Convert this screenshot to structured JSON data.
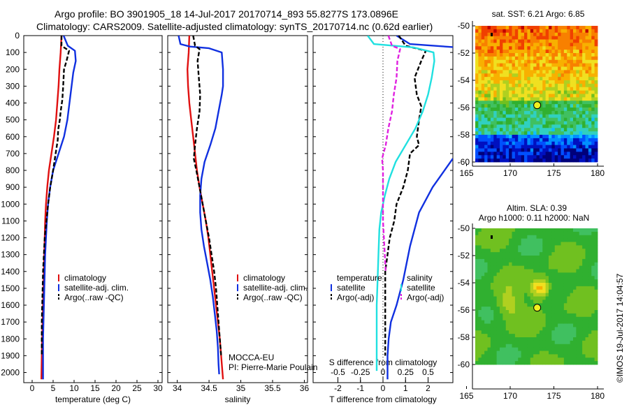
{
  "header": {
    "line1": "Argo profile: BO 3901905_18 14-Jul-2017 20170714_893 55.8277S 173.0896E",
    "line2": "Climatology: CARS2009. Satellite-adjusted climatology: synTS_20170714.nc (0.62d earlier)"
  },
  "colors": {
    "climatology": "#e01010",
    "satellite": "#1030e0",
    "argo": "#000000",
    "sal_satellite": "#20e0e0",
    "sal_argo": "#e020e0"
  },
  "panels": {
    "temperature": {
      "xlabel": "temperature (deg C)",
      "xticks": [
        "0",
        "5",
        "10",
        "15",
        "20",
        "25",
        "30"
      ]
    },
    "salinity": {
      "xlabel": "salinity",
      "xticks": [
        "34",
        "34.5",
        "35",
        "35.5",
        "36"
      ]
    },
    "difference": {
      "xlabel_bottom": "T difference from climatology",
      "xlabel_top": "S difference from climatology",
      "xticks_bottom": [
        "-2",
        "-1",
        "0",
        "1",
        "2"
      ],
      "xticks_top": [
        "-0.5",
        "-0.25",
        "0",
        "0.25",
        "0.5"
      ]
    }
  },
  "depth_ticks": [
    "0",
    "100",
    "200",
    "300",
    "400",
    "500",
    "600",
    "700",
    "800",
    "900",
    "1000",
    "1100",
    "1200",
    "1300",
    "1400",
    "1500",
    "1600",
    "1700",
    "1800",
    "1900",
    "2000"
  ],
  "legends": {
    "temperature": [
      "climatology",
      "satellite-adj. clim.",
      "Argo(..raw -QC)"
    ],
    "salinity": [
      "climatology",
      "satellite-adj. clim.",
      "Argo(..raw -QC)"
    ],
    "diff_temp_title": "temperature",
    "diff_sal_title": "salinity",
    "diff_items": [
      "satellite",
      "Argo(-adj)"
    ]
  },
  "pi": {
    "project": "MOCCA-EU",
    "name": "PI: Pierre-Marie Poulain"
  },
  "maps": {
    "sst": {
      "title": "sat. SST: 6.21 Argo: 6.85",
      "xticks": [
        "165",
        "170",
        "175",
        "180"
      ],
      "yticks": [
        "-50",
        "-52",
        "-54",
        "-56",
        "-58",
        "-60"
      ]
    },
    "sla": {
      "title1": "Altim. SLA: 0.39",
      "title2": "Argo h1000: 0.11 h2000: NaN",
      "xticks": [
        "165",
        "170",
        "175",
        "180"
      ],
      "yticks": [
        "-50",
        "-52",
        "-54",
        "-56",
        "-58",
        "-60"
      ]
    }
  },
  "stamp": "©IMOS 19-Jul-2017 14:04:57",
  "chart_data": [
    {
      "type": "line",
      "panel": "temperature",
      "xlabel": "temperature (deg C)",
      "ylabel": "",
      "xlim": [
        -2,
        31
      ],
      "ylim": [
        2060,
        0
      ],
      "y_axis": "depth",
      "series": [
        {
          "name": "climatology",
          "color_key": "climatology",
          "points": [
            [
              7,
              0
            ],
            [
              6.8,
              100
            ],
            [
              6.5,
              200
            ],
            [
              6.3,
              300
            ],
            [
              6,
              400
            ],
            [
              5.7,
              500
            ],
            [
              5.2,
              600
            ],
            [
              4.6,
              700
            ],
            [
              4,
              800
            ],
            [
              3.6,
              900
            ],
            [
              3.3,
              1000
            ],
            [
              3.1,
              1100
            ],
            [
              3,
              1200
            ],
            [
              2.9,
              1300
            ],
            [
              2.8,
              1400
            ],
            [
              2.7,
              1500
            ],
            [
              2.6,
              1600
            ],
            [
              2.5,
              1700
            ],
            [
              2.4,
              1800
            ],
            [
              2.3,
              1900
            ],
            [
              2.2,
              2040
            ]
          ]
        },
        {
          "name": "satellite-adj. clim.",
          "color_key": "satellite",
          "points": [
            [
              7.5,
              0
            ],
            [
              8.5,
              60
            ],
            [
              10.2,
              90
            ],
            [
              10.4,
              150
            ],
            [
              9.8,
              220
            ],
            [
              9.4,
              300
            ],
            [
              8.9,
              400
            ],
            [
              8.4,
              500
            ],
            [
              7.6,
              600
            ],
            [
              6.3,
              700
            ],
            [
              5,
              800
            ],
            [
              4.3,
              900
            ],
            [
              3.8,
              1000
            ],
            [
              3.5,
              1100
            ],
            [
              3.3,
              1200
            ],
            [
              3.1,
              1300
            ],
            [
              3,
              1400
            ],
            [
              2.9,
              1500
            ],
            [
              2.8,
              1600
            ],
            [
              2.7,
              1700
            ],
            [
              2.6,
              1800
            ],
            [
              2.6,
              1900
            ],
            [
              2.6,
              2040
            ]
          ]
        },
        {
          "name": "Argo(..raw -QC)",
          "color_key": "argo",
          "points": [
            [
              7,
              0
            ],
            [
              7,
              60
            ],
            [
              8.8,
              90
            ],
            [
              8.2,
              150
            ],
            [
              7.6,
              200
            ],
            [
              7.4,
              300
            ],
            [
              7.2,
              380
            ],
            [
              6.8,
              450
            ],
            [
              6.6,
              500
            ],
            [
              6.2,
              560
            ],
            [
              6.1,
              620
            ],
            [
              5.6,
              700
            ],
            [
              5,
              800
            ],
            [
              4.3,
              900
            ],
            [
              3.8,
              1000
            ],
            [
              3.4,
              1100
            ],
            [
              3,
              1200
            ],
            [
              2.8,
              1300
            ],
            [
              2.6,
              1400
            ],
            [
              2.5,
              1500
            ],
            [
              2.4,
              1600
            ],
            [
              2.3,
              1700
            ],
            [
              2.3,
              1800
            ],
            [
              2.3,
              1900
            ]
          ]
        }
      ]
    },
    {
      "type": "line",
      "panel": "salinity",
      "xlabel": "salinity",
      "ylabel": "",
      "xlim": [
        33.85,
        36.05
      ],
      "ylim": [
        2060,
        0
      ],
      "y_axis": "depth",
      "series": [
        {
          "name": "climatology",
          "color_key": "climatology",
          "points": [
            [
              34.19,
              0
            ],
            [
              34.18,
              100
            ],
            [
              34.16,
              200
            ],
            [
              34.17,
              300
            ],
            [
              34.19,
              400
            ],
            [
              34.22,
              500
            ],
            [
              34.25,
              600
            ],
            [
              34.28,
              700
            ],
            [
              34.31,
              800
            ],
            [
              34.35,
              900
            ],
            [
              34.4,
              1000
            ],
            [
              34.45,
              1100
            ],
            [
              34.49,
              1200
            ],
            [
              34.52,
              1300
            ],
            [
              34.55,
              1400
            ],
            [
              34.58,
              1500
            ],
            [
              34.61,
              1600
            ],
            [
              34.64,
              1700
            ],
            [
              34.67,
              1800
            ],
            [
              34.69,
              1900
            ],
            [
              34.72,
              2040
            ]
          ]
        },
        {
          "name": "satellite-adj. clim.",
          "color_key": "satellite",
          "points": [
            [
              34.02,
              0
            ],
            [
              34.05,
              50
            ],
            [
              34.2,
              65
            ],
            [
              34.5,
              75
            ],
            [
              34.7,
              100
            ],
            [
              34.72,
              200
            ],
            [
              34.72,
              300
            ],
            [
              34.7,
              350
            ],
            [
              34.65,
              450
            ],
            [
              34.6,
              550
            ],
            [
              34.52,
              650
            ],
            [
              34.43,
              750
            ],
            [
              34.38,
              850
            ],
            [
              34.36,
              950
            ],
            [
              34.36,
              1050
            ],
            [
              34.38,
              1150
            ],
            [
              34.42,
              1250
            ],
            [
              34.47,
              1350
            ],
            [
              34.52,
              1450
            ],
            [
              34.56,
              1550
            ],
            [
              34.59,
              1650
            ],
            [
              34.62,
              1750
            ],
            [
              34.64,
              1850
            ],
            [
              34.65,
              1950
            ],
            [
              34.66,
              2010
            ]
          ]
        },
        {
          "name": "Argo(..raw -QC)",
          "color_key": "argo",
          "points": [
            [
              34.25,
              0
            ],
            [
              34.28,
              60
            ],
            [
              34.35,
              80
            ],
            [
              34.32,
              150
            ],
            [
              34.34,
              250
            ],
            [
              34.36,
              350
            ],
            [
              34.35,
              450
            ],
            [
              34.31,
              550
            ],
            [
              34.28,
              650
            ],
            [
              34.26,
              730
            ],
            [
              34.3,
              800
            ],
            [
              34.35,
              900
            ],
            [
              34.4,
              1000
            ],
            [
              34.45,
              1100
            ],
            [
              34.5,
              1200
            ],
            [
              34.54,
              1300
            ],
            [
              34.58,
              1400
            ],
            [
              34.61,
              1500
            ],
            [
              34.63,
              1600
            ],
            [
              34.65,
              1700
            ],
            [
              34.67,
              1800
            ],
            [
              34.69,
              1900
            ]
          ]
        }
      ]
    },
    {
      "type": "line",
      "panel": "difference",
      "xlabel": "T difference from climatology",
      "x2label": "S difference from climatology",
      "xlim": [
        -3.1,
        3.1
      ],
      "x2lim": [
        -0.775,
        0.775
      ],
      "ylim": [
        2060,
        0
      ],
      "y_axis": "depth",
      "series": [
        {
          "name": "satellite",
          "group": "temperature",
          "axis": "x",
          "color_key": "satellite",
          "points": [
            [
              0.6,
              0
            ],
            [
              1.2,
              50
            ],
            [
              3.3,
              70
            ],
            [
              3.3,
              300
            ]
          ]
        },
        {
          "name": "satellite",
          "group": "temperature",
          "axis": "x",
          "color_key": "satellite",
          "segment": 2,
          "points": [
            [
              3.1,
              730
            ],
            [
              2.2,
              900
            ],
            [
              1.6,
              1050
            ],
            [
              1.2,
              1250
            ],
            [
              0.9,
              1450
            ],
            [
              0.6,
              1600
            ],
            [
              0.35,
              1700
            ],
            [
              0.25,
              1800
            ],
            [
              0.2,
              1900
            ],
            [
              0.2,
              2040
            ]
          ]
        },
        {
          "name": "Argo(-adj)",
          "group": "temperature",
          "axis": "x",
          "color_key": "argo",
          "points": [
            [
              0.7,
              0
            ],
            [
              1,
              60
            ],
            [
              1.9,
              90
            ],
            [
              1.7,
              150
            ],
            [
              1.4,
              250
            ],
            [
              1.5,
              350
            ],
            [
              1.7,
              420
            ],
            [
              1.6,
              500
            ],
            [
              1.5,
              600
            ],
            [
              1.6,
              650
            ],
            [
              1.2,
              700
            ],
            [
              1.1,
              800
            ],
            [
              0.9,
              900
            ],
            [
              0.6,
              1000
            ],
            [
              0.5,
              1100
            ],
            [
              0.3,
              1200
            ],
            [
              0.2,
              1300
            ],
            [
              0.1,
              1400
            ],
            [
              0.1,
              1500
            ],
            [
              0.1,
              1600
            ],
            [
              0.1,
              1700
            ],
            [
              0.1,
              1800
            ],
            [
              0.1,
              1900
            ]
          ]
        },
        {
          "name": "satellite",
          "group": "salinity",
          "axis": "x2",
          "color_key": "sal_satellite",
          "points": [
            [
              -0.17,
              0
            ],
            [
              -0.1,
              50
            ],
            [
              0.34,
              70
            ],
            [
              0.56,
              100
            ],
            [
              0.57,
              150
            ],
            [
              0.54,
              250
            ],
            [
              0.5,
              350
            ],
            [
              0.44,
              450
            ],
            [
              0.36,
              550
            ],
            [
              0.25,
              650
            ],
            [
              0.14,
              750
            ],
            [
              0.07,
              850
            ],
            [
              0.02,
              950
            ],
            [
              -0.02,
              1050
            ],
            [
              -0.04,
              1150
            ],
            [
              -0.05,
              1300
            ],
            [
              -0.06,
              1450
            ],
            [
              -0.07,
              1600
            ],
            [
              -0.07,
              1750
            ],
            [
              -0.07,
              1900
            ],
            [
              -0.07,
              1990
            ]
          ]
        },
        {
          "name": "Argo(-adj)",
          "group": "salinity",
          "axis": "x2",
          "color_key": "sal_argo",
          "points": [
            [
              0.06,
              0
            ],
            [
              0.1,
              60
            ],
            [
              0.19,
              80
            ],
            [
              0.16,
              150
            ],
            [
              0.15,
              250
            ],
            [
              0.12,
              350
            ],
            [
              0.1,
              450
            ],
            [
              0.06,
              550
            ],
            [
              0.03,
              650
            ],
            [
              -0.01,
              730
            ],
            [
              0,
              800
            ],
            [
              0,
              900
            ],
            [
              0,
              1000
            ],
            [
              0,
              1100
            ],
            [
              0.01,
              1200
            ],
            [
              0.02,
              1300
            ],
            [
              0.03,
              1400
            ]
          ]
        }
      ]
    }
  ]
}
